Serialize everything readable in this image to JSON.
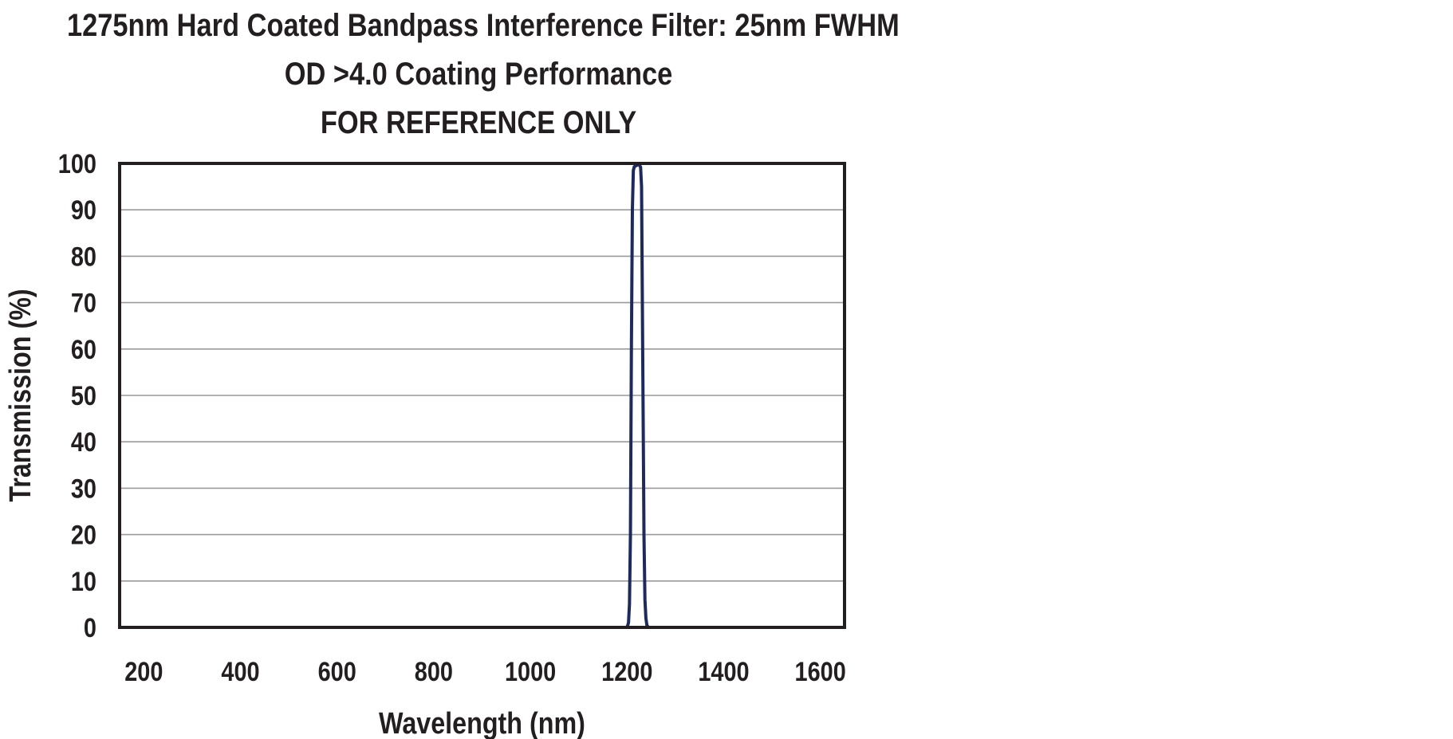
{
  "chart_data": {
    "type": "line",
    "title_lines": [
      "1275nm Hard Coated Bandpass Interference Filter: 25nm FWHM",
      "OD >4.0 Coating Performance",
      "FOR REFERENCE ONLY"
    ],
    "xlabel": "Wavelength (nm)",
    "ylabel": "Transmission (%)",
    "xlim": [
      150,
      1650
    ],
    "ylim": [
      0,
      100
    ],
    "x_ticks": [
      "200",
      "400",
      "600",
      "800",
      "1000",
      "1200",
      "1400",
      "1600"
    ],
    "y_ticks": [
      "0",
      "10",
      "20",
      "30",
      "40",
      "50",
      "60",
      "70",
      "80",
      "90",
      "100"
    ],
    "grid": true,
    "series": [
      {
        "color": "#1f2a5c",
        "x": [
          150,
          1200,
          1203,
          1205,
          1207,
          1209,
          1211,
          1213,
          1215,
          1220,
          1225,
          1228,
          1230,
          1231,
          1233,
          1235,
          1237,
          1239,
          1241,
          1244,
          1650
        ],
        "y": [
          0,
          0,
          1,
          5,
          20,
          60,
          90,
          98.5,
          99.3,
          99.6,
          99.8,
          99.2,
          95,
          80,
          50,
          20,
          6,
          2,
          0.5,
          0,
          0
        ]
      }
    ]
  }
}
